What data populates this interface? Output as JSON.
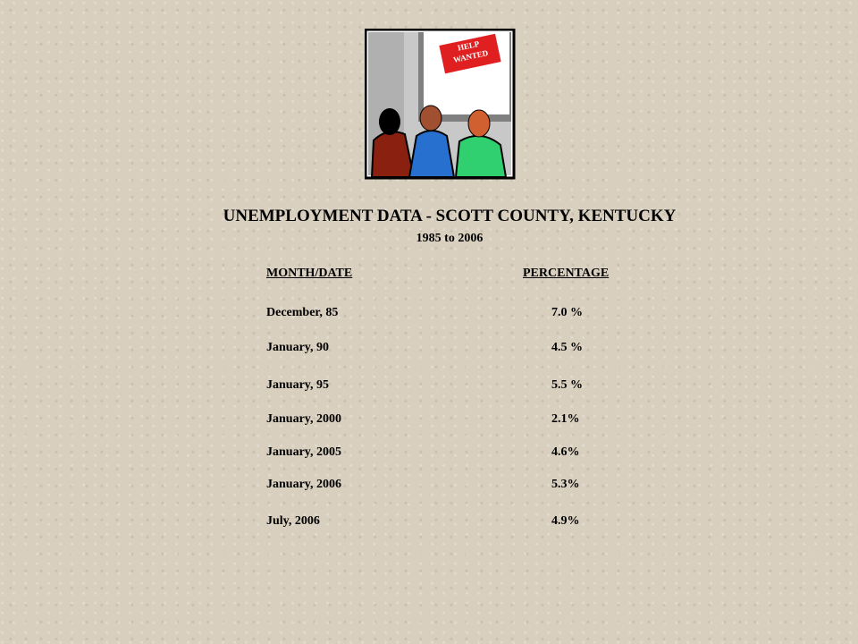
{
  "image": {
    "sign": [
      "HELP",
      "WANTED"
    ]
  },
  "title": "UNEMPLOYMENT DATA - SCOTT COUNTY, KENTUCKY",
  "subtitle": "1985 to 2006",
  "table": {
    "header": [
      "MONTH/DATE",
      "PERCENTAGE"
    ],
    "rows": [
      [
        "December, 85",
        "7.0 %"
      ],
      [
        "January, 90",
        "4.5 %"
      ],
      [
        "January, 95",
        "5.5 %"
      ],
      [
        "January, 2000",
        "2.1%"
      ],
      [
        "January, 2005",
        "4.6%"
      ],
      [
        "January, 2006",
        "5.3%"
      ],
      [
        "July, 2006",
        "4.9%"
      ]
    ]
  }
}
